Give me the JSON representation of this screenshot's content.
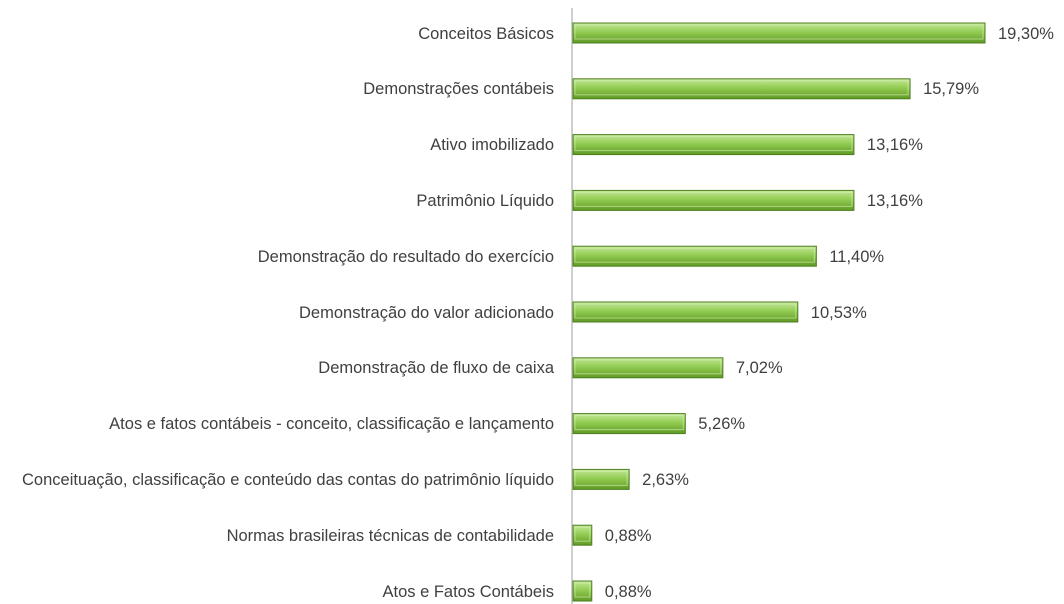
{
  "chart_data": {
    "type": "bar",
    "orientation": "horizontal",
    "color": "#8cc84b",
    "categories": [
      "Conceitos Básicos",
      "Demonstrações contábeis",
      "Ativo imobilizado",
      "Patrimônio Líquido",
      "Demonstração do resultado do exercício",
      "Demonstração do valor adicionado",
      "Demonstração de fluxo de caixa",
      "Atos e fatos contábeis - conceito, classificação e lançamento",
      "Conceituação, classificação e conteúdo das contas do patrimônio líquido",
      "Normas brasileiras técnicas de contabilidade",
      "Atos e Fatos Contábeis"
    ],
    "values": [
      19.3,
      15.79,
      13.16,
      13.16,
      11.4,
      10.53,
      7.02,
      5.26,
      2.63,
      0.88,
      0.88
    ],
    "value_labels": [
      "19,30%",
      "15,79%",
      "13,16%",
      "13,16%",
      "11,40%",
      "10,53%",
      "7,02%",
      "5,26%",
      "2,63%",
      "0,88%",
      "0,88%"
    ]
  }
}
